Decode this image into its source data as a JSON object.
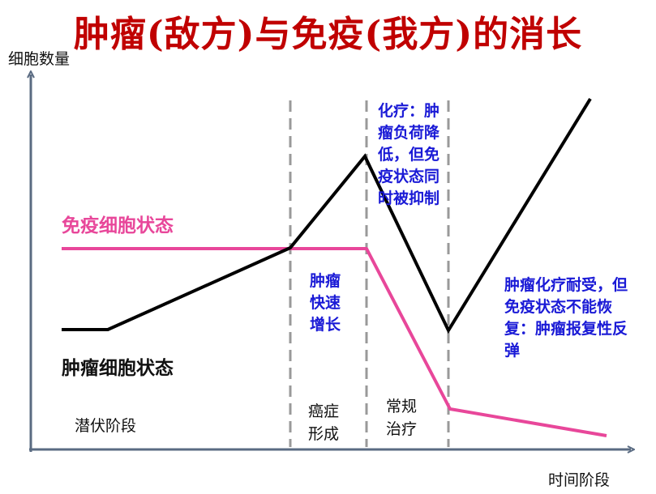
{
  "title": "肿瘤(敌方)与免疫(我方)的消长",
  "y_axis_label": "细胞数量",
  "x_axis_label": "时间阶段",
  "immune_curve_label": "免疫细胞状态",
  "tumor_curve_label": "肿瘤细胞状态",
  "phases": {
    "latent": "潜伏阶段",
    "onset": "癌症形成",
    "treatment": "常规治疗"
  },
  "notes": {
    "rapid_growth": "肿瘤快速增长",
    "chemo": "化疗：肿瘤负荷降低，但免疫状态同时被抑制",
    "rebound": "肿瘤化疗耐受，但免疫状态不能恢复：肿瘤报复性反弹"
  },
  "colors": {
    "title": "#c00000",
    "immune_line": "#e8479a",
    "tumor_line": "#000000",
    "annotation": "#1a1ad6",
    "axis": "#5a6b82",
    "divider": "#999999"
  }
}
